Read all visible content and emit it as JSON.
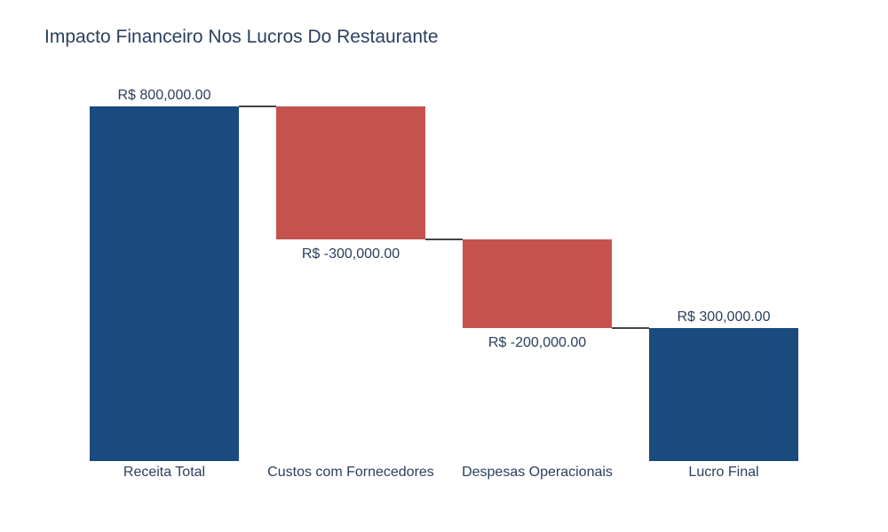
{
  "chart_data": {
    "type": "waterfall",
    "title": "Impacto Financeiro Nos Lucros Do Restaurante",
    "categories": [
      "Receita Total",
      "Custos com Fornecedores",
      "Despesas Operacionais",
      "Lucro Final"
    ],
    "values": [
      800000,
      -300000,
      -200000,
      300000
    ],
    "measures": [
      "absolute",
      "relative",
      "relative",
      "total"
    ],
    "text_labels": [
      "R$ 800,000.00",
      "R$ -300,000.00",
      "R$ -200,000.00",
      "R$ 300,000.00"
    ],
    "ylim": [
      0,
      800000
    ],
    "grid": false,
    "colors": {
      "totals": "#1a4a7e",
      "decreasing": "#c4534f",
      "connector": "#444444",
      "text": "#2a3f5f"
    }
  }
}
